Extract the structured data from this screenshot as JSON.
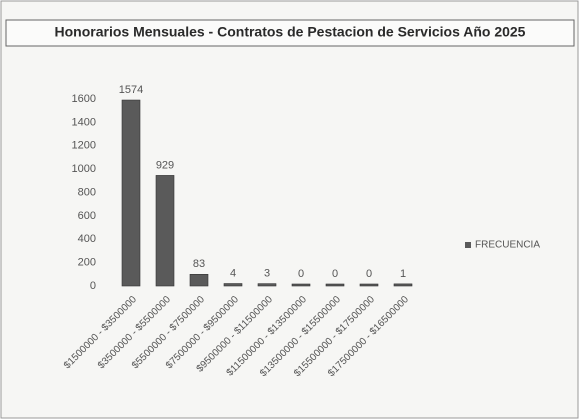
{
  "chart_data": {
    "type": "bar",
    "title": "Honorarios Mensuales - Contratos de Pestacion de Servicios Año 2025",
    "categories": [
      "$1500000 - $3500000",
      "$3500000 - $5500000",
      "$5500000 - $7500000",
      "$7500000 - $9500000",
      "$9500000 - $11500000",
      "$11500000 - $13500000",
      "$13500000 - $15500000",
      "$15500000 - $17500000",
      "$17500000 - $16500000"
    ],
    "series": [
      {
        "name": "FRECUENCIA",
        "color": "#5a5a5a",
        "values": [
          1574,
          929,
          83,
          4,
          3,
          0,
          0,
          0,
          1
        ]
      }
    ],
    "ylim": [
      0,
      1600
    ],
    "yticks": [
      0,
      200,
      400,
      600,
      800,
      1000,
      1200,
      1400,
      1600
    ],
    "grid": false,
    "legend": "right"
  }
}
